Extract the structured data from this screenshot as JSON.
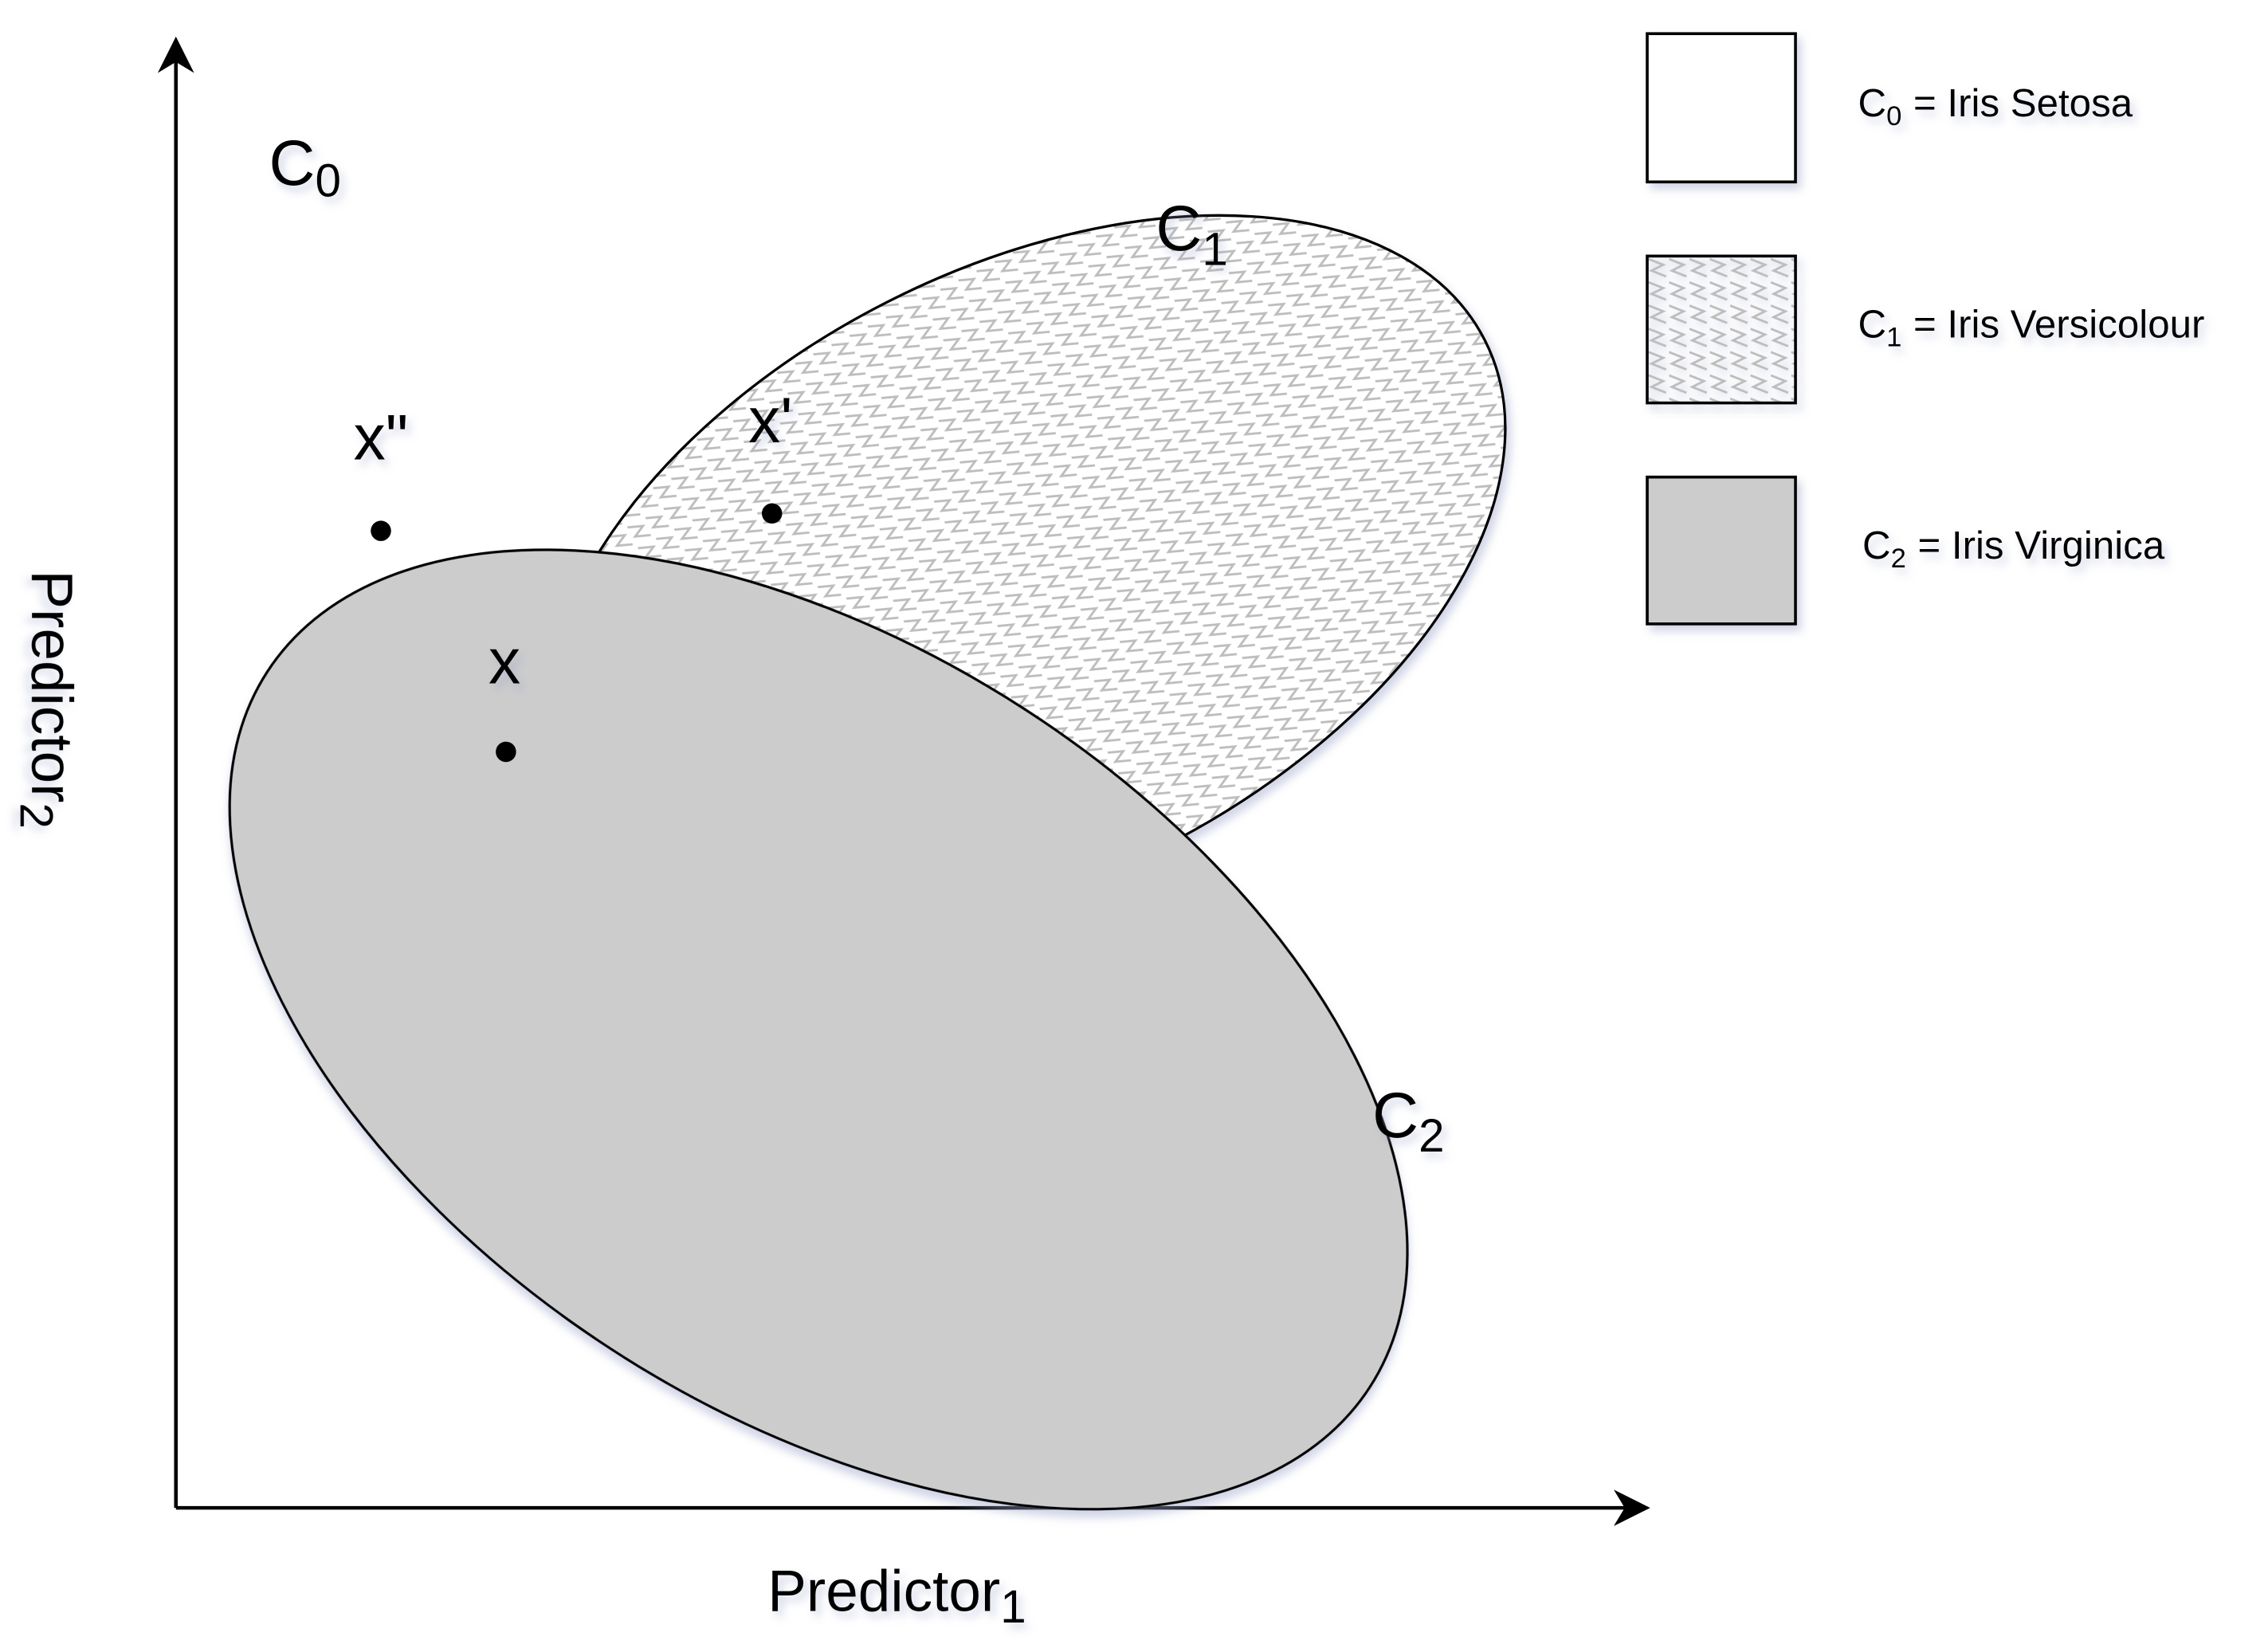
{
  "axes": {
    "x_label": {
      "text": "Predictor",
      "sub": "1"
    },
    "y_label": {
      "text": "Predictor",
      "sub": "2"
    }
  },
  "regions": [
    {
      "text": "C",
      "sub": "0"
    },
    {
      "text": "C",
      "sub": "1"
    },
    {
      "text": "C",
      "sub": "2"
    }
  ],
  "points": [
    {
      "label": "x\""
    },
    {
      "label": "x'"
    },
    {
      "label": "x"
    }
  ],
  "legend": [
    {
      "symbol": "C",
      "sub": "0",
      "text": "= Iris Setosa"
    },
    {
      "symbol": "C",
      "sub": "1",
      "text": "= Iris Versicolour"
    },
    {
      "symbol": "C",
      "sub": "2",
      "text": "= Iris Virginica"
    }
  ]
}
